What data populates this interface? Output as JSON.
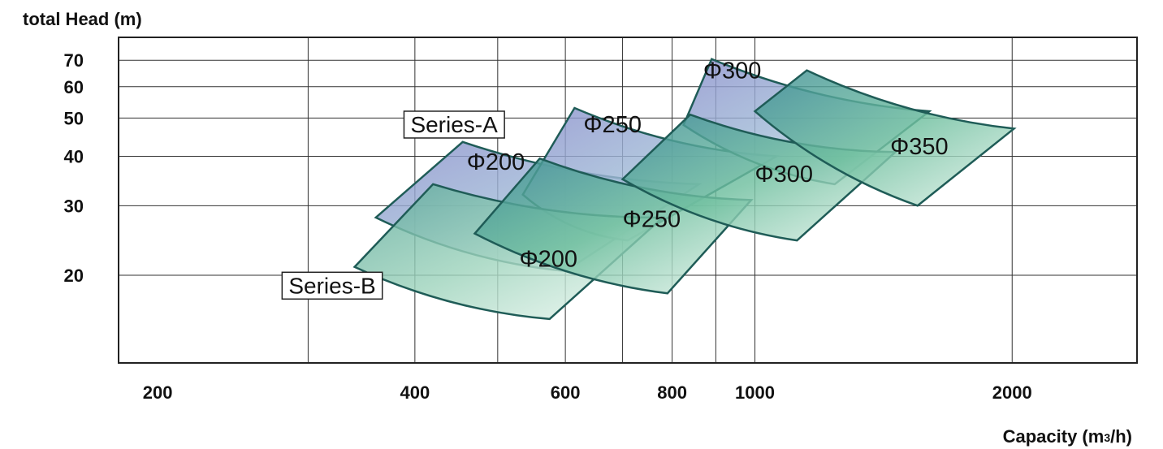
{
  "chart_data": {
    "type": "area",
    "ylabel": "total Head (m)",
    "xlabel": "Capacity (m",
    "xlabel_sub": "3",
    "xlabel_end": "/h)",
    "x_scale": "log",
    "y_scale": "log",
    "xlim": [
      180,
      2800
    ],
    "ylim": [
      12,
      80
    ],
    "x_ticks": [
      200,
      400,
      600,
      800,
      1000,
      2000
    ],
    "y_ticks": [
      20,
      30,
      40,
      50,
      60,
      70
    ],
    "x_grid": [
      300,
      400,
      500,
      600,
      700,
      800,
      900,
      1000,
      2000
    ],
    "grid": true,
    "colors": {
      "region_stroke": "#1f5c57",
      "series_a_fill": "#8f9fcc",
      "series_b_fill": "#6fbf9f",
      "teal_fill": "#4f9fa8"
    },
    "series_labels": [
      {
        "text": "Series-A",
        "anchor": [
          500,
          46
        ]
      },
      {
        "text": "Series-B",
        "anchor": [
          360,
          18
        ]
      }
    ],
    "series": [
      {
        "label": "Φ200",
        "group": "Series-A",
        "label_at": [
          460,
          37
        ],
        "region": {
          "tl": [
            455,
            43.5
          ],
          "tr": [
            860,
            34
          ],
          "br": [
            600,
            20.5
          ],
          "bl": [
            360,
            28
          ]
        }
      },
      {
        "label": "Φ250",
        "group": "Series-A",
        "label_at": [
          630,
          46
        ],
        "region": {
          "tl": [
            615,
            53
          ],
          "tr": [
            1060,
            40
          ],
          "br": [
            710,
            24.5
          ],
          "bl": [
            535,
            32
          ]
        }
      },
      {
        "label": "Φ300",
        "group": "Series-A",
        "label_at": [
          870,
          63
        ],
        "region": {
          "tl": [
            890,
            70.5
          ],
          "tr": [
            1600,
            52
          ],
          "br": [
            1240,
            34
          ],
          "bl": [
            825,
            48
          ]
        }
      },
      {
        "label": "Φ200",
        "group": "Series-B",
        "label_at": [
          530,
          21
        ],
        "region": {
          "tl": [
            420,
            34
          ],
          "tr": [
            780,
            28
          ],
          "br": [
            575,
            15.5
          ],
          "bl": [
            340,
            21
          ]
        }
      },
      {
        "label": "Φ250",
        "group": "Series-B",
        "label_at": [
          700,
          26.5
        ],
        "region": {
          "tl": [
            560,
            39.5
          ],
          "tr": [
            990,
            31
          ],
          "br": [
            790,
            18
          ],
          "bl": [
            470,
            25.5
          ]
        }
      },
      {
        "label": "Φ300",
        "group": "Series-B",
        "label_at": [
          1000,
          34.5
        ],
        "region": {
          "tl": [
            840,
            51
          ],
          "tr": [
            1460,
            41
          ],
          "br": [
            1120,
            24.5
          ],
          "bl": [
            700,
            35
          ]
        }
      },
      {
        "label": "Φ350",
        "group": "Series-B",
        "label_at": [
          1440,
          40.5
        ],
        "region": {
          "tl": [
            1150,
            66
          ],
          "tr": [
            2010,
            47
          ],
          "br": [
            1550,
            30
          ],
          "bl": [
            1000,
            52
          ]
        }
      }
    ]
  }
}
